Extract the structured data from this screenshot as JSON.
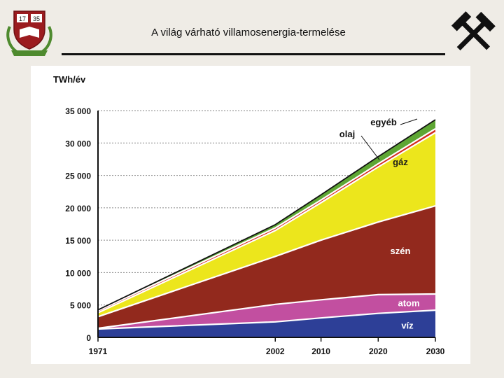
{
  "slide": {
    "title": "A világ várható villamosenergia-termelése"
  },
  "logo": {
    "years": [
      "17",
      "35"
    ]
  },
  "chart_data": {
    "type": "area",
    "stacked": true,
    "ylabel": "TWh/év",
    "x": [
      "1971",
      "2002",
      "2010",
      "2020",
      "2030"
    ],
    "ylim": [
      0,
      35000
    ],
    "yticks": [
      "0",
      "5 000",
      "10 000",
      "15 000",
      "20 000",
      "25 000",
      "30 000",
      "35 000"
    ],
    "series": [
      {
        "name": "víz",
        "color": "#2d3f97",
        "values": [
          1300,
          2400,
          3000,
          3700,
          4200
        ]
      },
      {
        "name": "atom",
        "color": "#c24fa0",
        "values": [
          100,
          2700,
          2800,
          2900,
          2500
        ]
      },
      {
        "name": "szén",
        "color": "#92291d",
        "values": [
          1800,
          7400,
          9200,
          11200,
          13600
        ]
      },
      {
        "name": "gáz",
        "color": "#ece61c",
        "values": [
          600,
          4000,
          5800,
          8500,
          11300
        ]
      },
      {
        "name": "olaj",
        "color": "#d32a1e",
        "values": [
          300,
          400,
          400,
          500,
          600
        ]
      },
      {
        "name": "egyéb",
        "color": "#5ea634",
        "values": [
          150,
          500,
          800,
          1100,
          1400
        ]
      }
    ]
  }
}
